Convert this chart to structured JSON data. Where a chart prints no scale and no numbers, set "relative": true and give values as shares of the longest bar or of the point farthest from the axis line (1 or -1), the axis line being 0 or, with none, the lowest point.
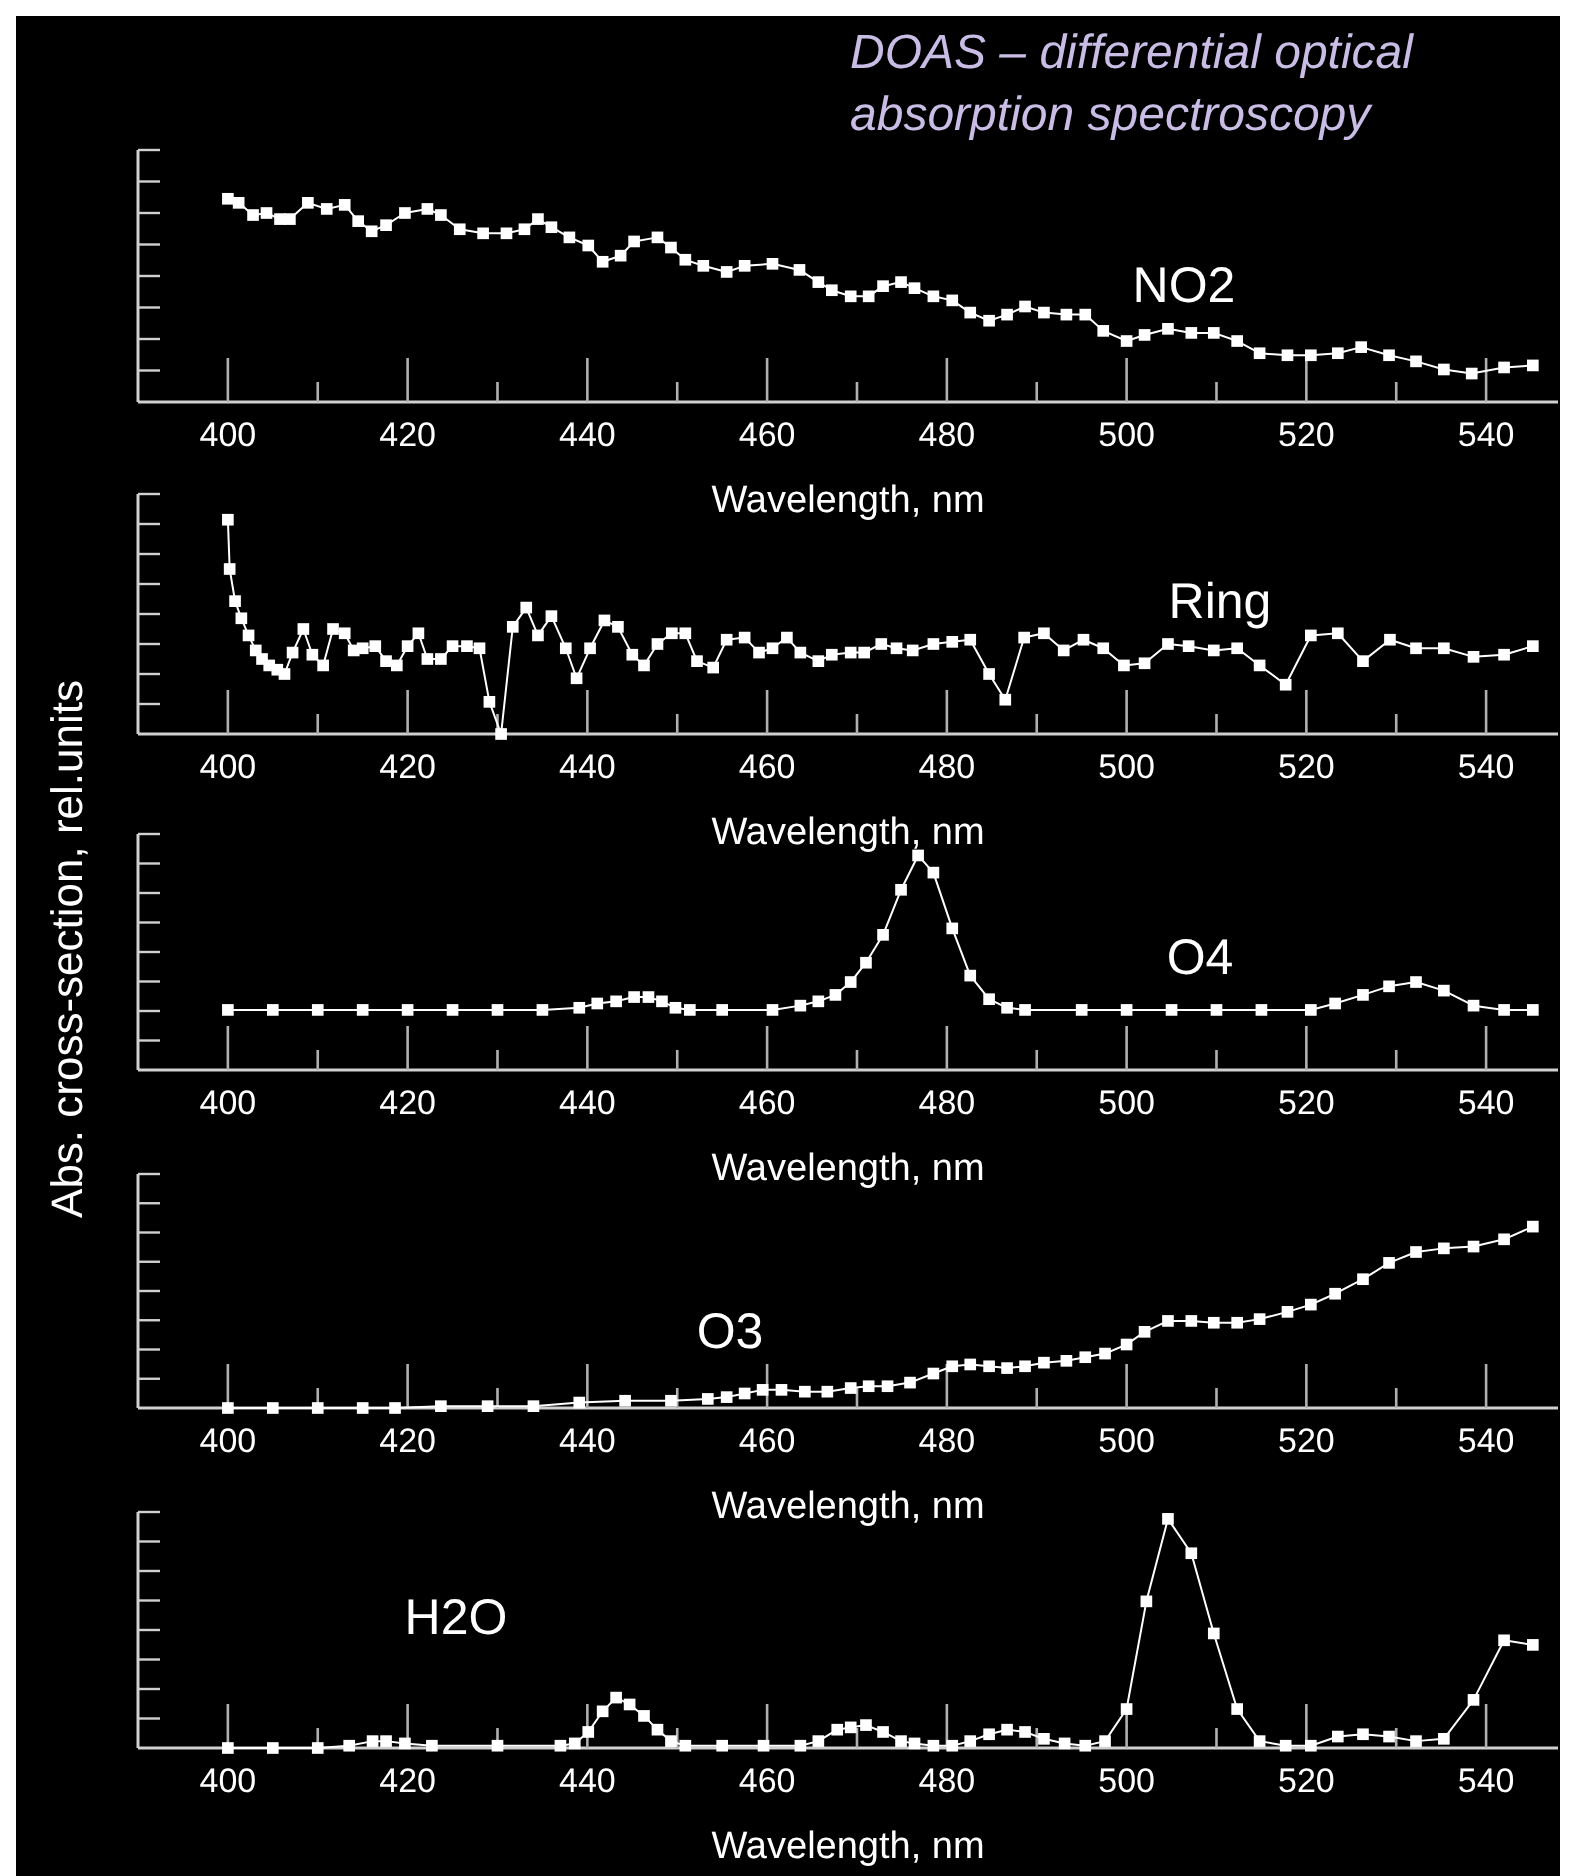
{
  "chart_data": [
    {
      "type": "line",
      "title": "DOAS – differential optical absorption spectroscopy",
      "relative": true,
      "xlabel": "Wavelength, nm",
      "xlim": [
        390,
        548
      ],
      "xticks": [
        400,
        {
          "value": 410,
          "label": null
        },
        420,
        {
          "value": 430,
          "label": null
        },
        440,
        {
          "value": 450,
          "label": null
        },
        460,
        {
          "value": 470,
          "label": null
        },
        480,
        {
          "value": 490,
          "label": null
        },
        500,
        {
          "value": 510,
          "label": null
        },
        520,
        {
          "value": 530,
          "label": null
        },
        540
      ],
      "tick_labels": "x",
      "marker": "square",
      "x": [
        400,
        401.2,
        402.8,
        404.3,
        405.8,
        406.9,
        408.9,
        411,
        413,
        414.5,
        416,
        417.6,
        419.7,
        422.2,
        423.7,
        425.8,
        428.4,
        431,
        433,
        434.5,
        436,
        438,
        440.1,
        441.7,
        443.7,
        445.2,
        447.8,
        449.3,
        450.9,
        452.9,
        455.5,
        457.5,
        460.6,
        463.6,
        465.7,
        467.2,
        469.3,
        471.3,
        472.9,
        474.9,
        476.4,
        478.5,
        480.6,
        482.6,
        484.7,
        486.7,
        488.7,
        490.8,
        493.3,
        495.4,
        497.4,
        500,
        502,
        504.6,
        507.2,
        509.7,
        512.3,
        514.8,
        517.9,
        520.5,
        523.5,
        526.1,
        529.2,
        532.2,
        535.3,
        538.4,
        542,
        545.2
      ],
      "series": [
        {
          "name": "NO2",
          "color": "#ffffff",
          "values": [
            1.0,
            0.98,
            0.92,
            0.93,
            0.9,
            0.9,
            0.98,
            0.95,
            0.97,
            0.89,
            0.84,
            0.87,
            0.93,
            0.95,
            0.92,
            0.85,
            0.83,
            0.83,
            0.85,
            0.9,
            0.86,
            0.81,
            0.77,
            0.69,
            0.72,
            0.79,
            0.81,
            0.76,
            0.7,
            0.67,
            0.64,
            0.67,
            0.68,
            0.65,
            0.59,
            0.55,
            0.52,
            0.52,
            0.57,
            0.59,
            0.56,
            0.52,
            0.5,
            0.44,
            0.4,
            0.43,
            0.47,
            0.44,
            0.43,
            0.43,
            0.35,
            0.3,
            0.33,
            0.36,
            0.34,
            0.34,
            0.3,
            0.24,
            0.23,
            0.23,
            0.24,
            0.27,
            0.23,
            0.2,
            0.16,
            0.14,
            0.17,
            0.18
          ]
        }
      ]
    },
    {
      "type": "line",
      "relative": true,
      "xlabel": "Wavelength, nm",
      "xlim": [
        390,
        548
      ],
      "xticks": [
        400,
        {
          "value": 410,
          "label": null
        },
        420,
        {
          "value": 430,
          "label": null
        },
        440,
        {
          "value": 450,
          "label": null
        },
        460,
        {
          "value": 470,
          "label": null
        },
        480,
        {
          "value": 490,
          "label": null
        },
        500,
        {
          "value": 510,
          "label": null
        },
        520,
        {
          "value": 530,
          "label": null
        },
        540
      ],
      "tick_labels": "x",
      "marker": "square",
      "x": [
        400,
        400.2,
        400.8,
        401.5,
        402.3,
        403.1,
        403.8,
        404.6,
        405.5,
        406.3,
        407.2,
        408.4,
        409.4,
        410.6,
        411.7,
        413,
        414,
        415,
        416.4,
        417.6,
        418.8,
        420,
        421.2,
        422.2,
        423.7,
        425,
        426.6,
        428,
        429.1,
        430.4,
        431.7,
        433.2,
        434.5,
        436,
        437.6,
        438.8,
        440.3,
        441.9,
        443.4,
        445,
        446.3,
        447.8,
        449.4,
        450.9,
        452.2,
        454,
        455.5,
        457.5,
        459.1,
        460.6,
        462.2,
        463.7,
        465.7,
        467.2,
        469.3,
        470.8,
        472.7,
        474.4,
        476.2,
        478.5,
        480.6,
        482.6,
        484.7,
        486.5,
        488.6,
        490.8,
        493,
        495.2,
        497.4,
        499.7,
        502,
        504.6,
        506.9,
        509.7,
        512.3,
        514.8,
        517.7,
        520.5,
        523.5,
        526.3,
        529.3,
        532.2,
        535.3,
        538.6,
        542,
        545.2
      ],
      "series": [
        {
          "name": "Ring",
          "color": "#ffffff",
          "values": [
            1.0,
            0.77,
            0.62,
            0.54,
            0.46,
            0.39,
            0.35,
            0.32,
            0.3,
            0.28,
            0.38,
            0.49,
            0.37,
            0.32,
            0.49,
            0.47,
            0.39,
            0.4,
            0.41,
            0.34,
            0.32,
            0.41,
            0.47,
            0.35,
            0.35,
            0.41,
            0.41,
            0.4,
            0.15,
            0,
            0.5,
            0.59,
            0.46,
            0.55,
            0.4,
            0.26,
            0.4,
            0.53,
            0.5,
            0.37,
            0.32,
            0.42,
            0.47,
            0.47,
            0.34,
            0.31,
            0.44,
            0.45,
            0.38,
            0.4,
            0.45,
            0.38,
            0.34,
            0.37,
            0.38,
            0.38,
            0.42,
            0.4,
            0.39,
            0.42,
            0.43,
            0.44,
            0.28,
            0.16,
            0.45,
            0.47,
            0.39,
            0.44,
            0.4,
            0.32,
            0.33,
            0.42,
            0.41,
            0.39,
            0.4,
            0.32,
            0.23,
            0.46,
            0.47,
            0.34,
            0.44,
            0.4,
            0.4,
            0.36,
            0.37,
            0.41
          ]
        }
      ]
    },
    {
      "type": "line",
      "relative": true,
      "ylabel": "Abs. cross-section, rel.units",
      "xlabel": "Wavelength, nm",
      "xlim": [
        390,
        548
      ],
      "xticks": [
        400,
        {
          "value": 410,
          "label": null
        },
        420,
        {
          "value": 430,
          "label": null
        },
        440,
        {
          "value": 450,
          "label": null
        },
        460,
        {
          "value": 470,
          "label": null
        },
        480,
        {
          "value": 490,
          "label": null
        },
        500,
        {
          "value": 510,
          "label": null
        },
        520,
        {
          "value": 530,
          "label": null
        },
        540
      ],
      "tick_labels": "x",
      "marker": "square",
      "x": [
        400,
        405,
        410,
        415,
        420,
        425,
        430,
        435,
        439.1,
        441.1,
        443.2,
        445.2,
        446.8,
        448.3,
        449.8,
        451.4,
        455,
        460.6,
        463.7,
        465.7,
        467.6,
        469.3,
        471,
        472.9,
        474.9,
        476.8,
        478.5,
        480.6,
        482.6,
        484.7,
        486.7,
        488.7,
        495,
        500,
        505,
        510,
        515,
        520.5,
        523.2,
        526.3,
        529.2,
        532.2,
        535.3,
        538.6,
        542,
        545.2
      ],
      "series": [
        {
          "name": "O4",
          "color": "#ffffff",
          "values": [
            0.28,
            0.28,
            0.28,
            0.28,
            0.28,
            0.28,
            0.28,
            0.28,
            0.29,
            0.31,
            0.32,
            0.34,
            0.34,
            0.32,
            0.29,
            0.28,
            0.28,
            0.28,
            0.3,
            0.32,
            0.35,
            0.41,
            0.5,
            0.63,
            0.84,
            1.0,
            0.92,
            0.66,
            0.44,
            0.33,
            0.29,
            0.28,
            0.28,
            0.28,
            0.28,
            0.28,
            0.28,
            0.28,
            0.31,
            0.35,
            0.39,
            0.41,
            0.37,
            0.3,
            0.28,
            0.28
          ]
        }
      ]
    },
    {
      "type": "line",
      "relative": true,
      "xlabel": "Wavelength, nm",
      "xlim": [
        390,
        548
      ],
      "xticks": [
        400,
        {
          "value": 410,
          "label": null
        },
        420,
        {
          "value": 430,
          "label": null
        },
        440,
        {
          "value": 450,
          "label": null
        },
        460,
        {
          "value": 470,
          "label": null
        },
        480,
        {
          "value": 490,
          "label": null
        },
        500,
        {
          "value": 510,
          "label": null
        },
        520,
        {
          "value": 530,
          "label": null
        },
        540
      ],
      "tick_labels": "x",
      "marker": "square",
      "x": [
        400,
        405,
        410,
        415,
        418.6,
        423.7,
        428.9,
        434,
        439.1,
        444.2,
        449.3,
        453.4,
        455.5,
        457.5,
        459.5,
        461.6,
        464.2,
        466.7,
        469.3,
        471.3,
        473.4,
        475.9,
        478.5,
        480.6,
        482.6,
        484.7,
        486.7,
        488.7,
        490.8,
        493.3,
        495.4,
        497.6,
        500,
        502,
        504.6,
        507.2,
        509.7,
        512.3,
        514.8,
        517.9,
        520.5,
        523.2,
        526.3,
        529.2,
        532.2,
        535.3,
        538.6,
        542,
        545.2
      ],
      "series": [
        {
          "name": "O3",
          "color": "#ffffff",
          "values": [
            0,
            0,
            0,
            0,
            0,
            0.01,
            0.01,
            0.01,
            0.03,
            0.04,
            0.04,
            0.05,
            0.06,
            0.08,
            0.1,
            0.1,
            0.09,
            0.09,
            0.11,
            0.12,
            0.12,
            0.14,
            0.19,
            0.23,
            0.24,
            0.23,
            0.22,
            0.23,
            0.25,
            0.26,
            0.28,
            0.3,
            0.35,
            0.42,
            0.48,
            0.48,
            0.47,
            0.47,
            0.49,
            0.53,
            0.57,
            0.63,
            0.71,
            0.8,
            0.86,
            0.88,
            0.89,
            0.93,
            1.0
          ]
        }
      ]
    },
    {
      "type": "line",
      "relative": true,
      "xlabel": "Wavelength, nm",
      "xlim": [
        390,
        548
      ],
      "xticks": [
        400,
        {
          "value": 410,
          "label": null
        },
        420,
        {
          "value": 430,
          "label": null
        },
        440,
        {
          "value": 450,
          "label": null
        },
        460,
        {
          "value": 470,
          "label": null
        },
        480,
        {
          "value": 490,
          "label": null
        },
        500,
        {
          "value": 510,
          "label": null
        },
        520,
        {
          "value": 530,
          "label": null
        },
        540
      ],
      "tick_labels": "x",
      "marker": "square",
      "x": [
        400,
        405,
        410,
        413.5,
        416.1,
        417.6,
        419.7,
        422.7,
        430,
        437,
        438.6,
        440.1,
        441.7,
        443.2,
        444.7,
        446.3,
        447.8,
        449.3,
        450.9,
        455,
        459.6,
        463.7,
        465.7,
        467.8,
        469.3,
        471,
        472.9,
        474.9,
        476.4,
        478.5,
        480.6,
        482.6,
        484.7,
        486.7,
        488.7,
        490.8,
        493.1,
        495.4,
        497.6,
        500,
        502.2,
        504.6,
        507.2,
        509.7,
        512.3,
        514.8,
        517.7,
        520.5,
        523.5,
        526.3,
        529.2,
        532.2,
        535.3,
        538.6,
        542,
        545.2
      ],
      "series": [
        {
          "name": "H2O",
          "color": "#ffffff",
          "values": [
            0,
            0,
            0,
            0.01,
            0.03,
            0.03,
            0.02,
            0.01,
            0.01,
            0.01,
            0.02,
            0.07,
            0.16,
            0.22,
            0.19,
            0.14,
            0.08,
            0.03,
            0.01,
            0.01,
            0.01,
            0.01,
            0.03,
            0.08,
            0.09,
            0.1,
            0.07,
            0.03,
            0.02,
            0.01,
            0.01,
            0.03,
            0.06,
            0.08,
            0.07,
            0.04,
            0.02,
            0.01,
            0.03,
            0.17,
            0.64,
            1.0,
            0.85,
            0.5,
            0.17,
            0.03,
            0.01,
            0.01,
            0.05,
            0.06,
            0.05,
            0.03,
            0.04,
            0.21,
            0.47,
            0.45
          ]
        }
      ]
    }
  ]
}
